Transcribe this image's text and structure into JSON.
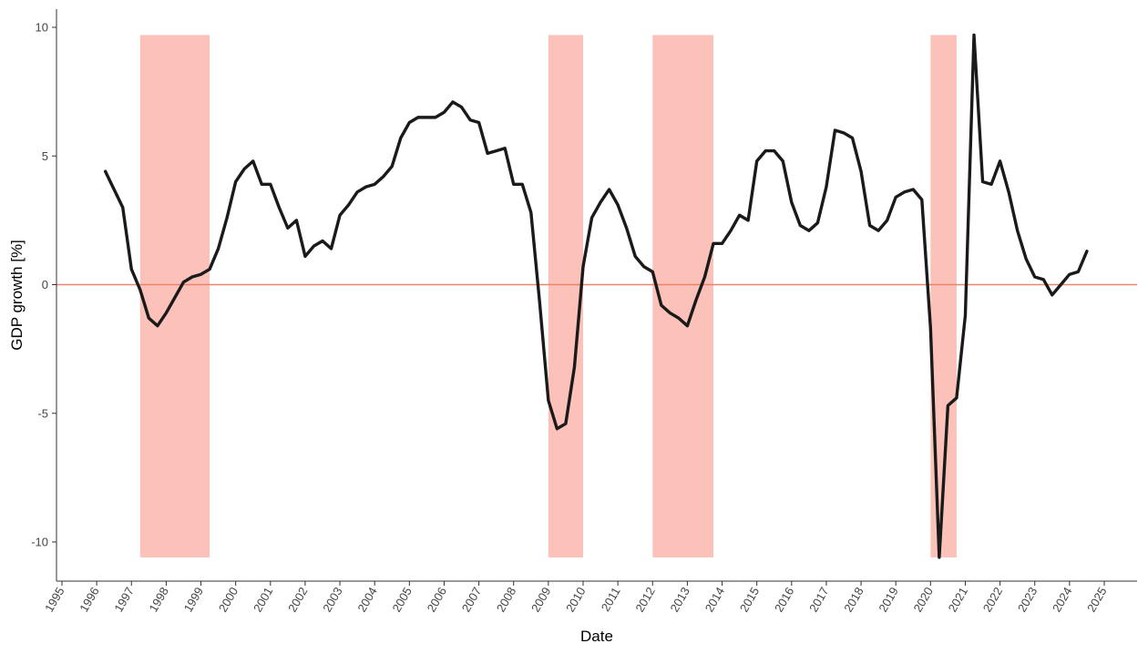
{
  "chart_data": {
    "type": "line",
    "title": "",
    "xlabel": "Date",
    "ylabel": "GDP growth [%]",
    "xlim": [
      1995,
      2025
    ],
    "ylim": [
      -10.6,
      9.7
    ],
    "x_ticks": [
      "1995",
      "1996",
      "1997",
      "1998",
      "1999",
      "2000",
      "2001",
      "2002",
      "2003",
      "2004",
      "2005",
      "2006",
      "2007",
      "2008",
      "2009",
      "2010",
      "2011",
      "2012",
      "2013",
      "2014",
      "2015",
      "2016",
      "2017",
      "2018",
      "2019",
      "2020",
      "2021",
      "2022",
      "2023",
      "2024",
      "2025"
    ],
    "y_ticks": [
      -10,
      -5,
      0,
      5,
      10
    ],
    "y_tick_labels": [
      "-10",
      "-5",
      "0",
      "5",
      "10"
    ],
    "grid": false,
    "legend": "none",
    "colors": {
      "line": "#1a1a1a",
      "recession": "#fcbcb2",
      "zero_line": "#e8846e"
    },
    "recession_periods": [
      {
        "start": 1997.25,
        "end": 1999.25
      },
      {
        "start": 2009.0,
        "end": 2010.0
      },
      {
        "start": 2012.0,
        "end": 2013.75
      },
      {
        "start": 2020.0,
        "end": 2020.75
      }
    ],
    "reference_line": {
      "y": 0
    },
    "series": [
      {
        "x": [
          1996.25,
          1996.5,
          1996.75,
          1997.0,
          1997.25,
          1997.5,
          1997.75,
          1998.0,
          1998.25,
          1998.5,
          1998.75,
          1999.0,
          1999.25,
          1999.5,
          1999.75,
          2000.0,
          2000.25,
          2000.5,
          2000.75,
          2001.0,
          2001.25,
          2001.5,
          2001.75,
          2002.0,
          2002.25,
          2002.5,
          2002.75,
          2003.0,
          2003.25,
          2003.5,
          2003.75,
          2004.0,
          2004.25,
          2004.5,
          2004.75,
          2005.0,
          2005.25,
          2005.5,
          2005.75,
          2006.0,
          2006.25,
          2006.5,
          2006.75,
          2007.0,
          2007.25,
          2007.5,
          2007.75,
          2008.0,
          2008.25,
          2008.5,
          2008.75,
          2009.0,
          2009.25,
          2009.5,
          2009.75,
          2010.0,
          2010.25,
          2010.5,
          2010.75,
          2011.0,
          2011.25,
          2011.5,
          2011.75,
          2012.0,
          2012.25,
          2012.5,
          2012.75,
          2013.0,
          2013.25,
          2013.5,
          2013.75,
          2014.0,
          2014.25,
          2014.5,
          2014.75,
          2015.0,
          2015.25,
          2015.5,
          2015.75,
          2016.0,
          2016.25,
          2016.5,
          2016.75,
          2017.0,
          2017.25,
          2017.5,
          2017.75,
          2018.0,
          2018.25,
          2018.5,
          2018.75,
          2019.0,
          2019.25,
          2019.5,
          2019.75,
          2020.0,
          2020.25,
          2020.5,
          2020.75,
          2021.0,
          2021.25,
          2021.5,
          2021.75,
          2022.0,
          2022.25,
          2022.5,
          2022.75,
          2023.0,
          2023.25,
          2023.5,
          2023.75,
          2024.0,
          2024.25,
          2024.5
        ],
        "values": [
          4.4,
          3.7,
          3.0,
          0.6,
          -0.2,
          -1.3,
          -1.6,
          -1.1,
          -0.5,
          0.1,
          0.3,
          0.4,
          0.6,
          1.4,
          2.6,
          4.0,
          4.5,
          4.8,
          3.9,
          3.9,
          3.0,
          2.2,
          2.5,
          1.1,
          1.5,
          1.7,
          1.4,
          2.7,
          3.1,
          3.6,
          3.8,
          3.9,
          4.2,
          4.6,
          5.7,
          6.3,
          6.5,
          6.5,
          6.5,
          6.7,
          7.1,
          6.9,
          6.4,
          6.3,
          5.1,
          5.2,
          5.3,
          3.9,
          3.9,
          2.8,
          -0.7,
          -4.5,
          -5.6,
          -5.4,
          -3.2,
          0.7,
          2.6,
          3.2,
          3.7,
          3.1,
          2.2,
          1.1,
          0.7,
          0.5,
          -0.8,
          -1.1,
          -1.3,
          -1.6,
          -0.6,
          0.3,
          1.6,
          1.6,
          2.1,
          2.7,
          2.5,
          4.8,
          5.2,
          5.2,
          4.8,
          3.2,
          2.3,
          2.1,
          2.4,
          3.8,
          6.0,
          5.9,
          5.7,
          4.4,
          2.3,
          2.1,
          2.5,
          3.4,
          3.6,
          3.7,
          3.3,
          -1.7,
          -10.6,
          -4.7,
          -4.4,
          -1.2,
          9.7,
          4.0,
          3.9,
          4.8,
          3.6,
          2.1,
          1.0,
          0.3,
          0.2,
          -0.4,
          0.0,
          0.4,
          0.5,
          1.3
        ]
      }
    ]
  }
}
